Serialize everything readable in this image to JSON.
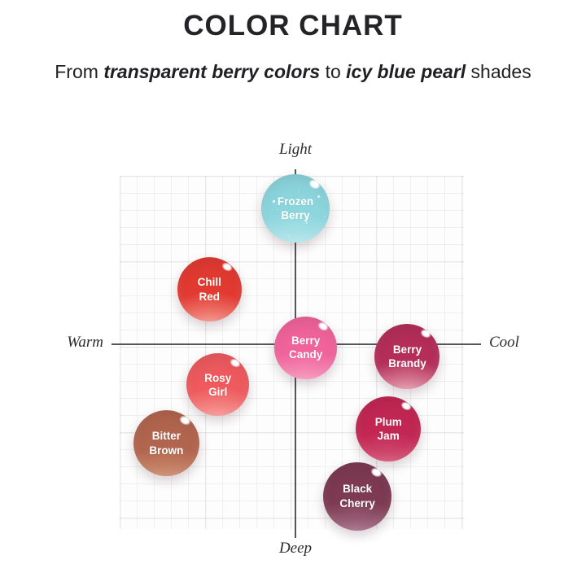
{
  "header": {
    "title": "COLOR CHART",
    "subtitle_parts": [
      {
        "text": "From ",
        "bold": false
      },
      {
        "text": "transparent berry colors",
        "bold": true
      },
      {
        "text": " to ",
        "bold": false
      },
      {
        "text": "icy blue pearl",
        "bold": true
      },
      {
        "text": " shades",
        "bold": false
      }
    ]
  },
  "chart_data": {
    "type": "scatter",
    "title": "COLOR CHART",
    "grid": true,
    "x_axis": {
      "negative_label": "Warm",
      "positive_label": "Cool",
      "range": [
        -1,
        1
      ]
    },
    "y_axis": {
      "negative_label": "Deep",
      "positive_label": "Light",
      "range": [
        -1,
        1
      ]
    },
    "points": [
      {
        "label": "Frozen Berry",
        "x": 0.0,
        "y": 0.77,
        "diameter": 84,
        "color": "#8cd5dd",
        "color_light": "#b9e9ed",
        "sparkle": true
      },
      {
        "label": "Chill Red",
        "x": -0.5,
        "y": 0.31,
        "diameter": 79,
        "color": "#e23a31",
        "color_light": "#f59d94",
        "sparkle": false
      },
      {
        "label": "Berry Brandy",
        "x": 0.65,
        "y": -0.07,
        "diameter": 80,
        "color": "#b42e59",
        "color_light": "#eaa8b6",
        "sparkle": false
      },
      {
        "label": "Berry Candy",
        "x": 0.06,
        "y": -0.02,
        "diameter": 77,
        "color": "#f0639b",
        "color_light": "#f79ec1",
        "sparkle": false
      },
      {
        "label": "Rosy Girl",
        "x": -0.45,
        "y": -0.23,
        "diameter": 77,
        "color": "#ee5a5e",
        "color_light": "#f9a19b",
        "sparkle": false
      },
      {
        "label": "Plum Jam",
        "x": 0.54,
        "y": -0.48,
        "diameter": 80,
        "color": "#c22753",
        "color_light": "#d6587a",
        "sparkle": false
      },
      {
        "label": "Bitter Brown",
        "x": -0.75,
        "y": -0.56,
        "diameter": 81,
        "color": "#b2654e",
        "color_light": "#cf9172",
        "sparkle": false
      },
      {
        "label": "Black Cherry",
        "x": 0.36,
        "y": -0.86,
        "diameter": 84,
        "color": "#7d3a52",
        "color_light": "#ab7890",
        "sparkle": false
      }
    ]
  }
}
